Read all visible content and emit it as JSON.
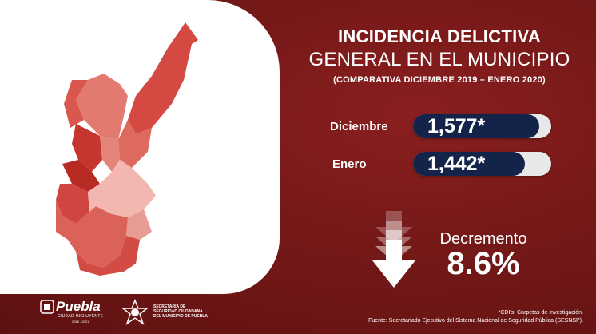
{
  "title": {
    "line1": "INCIDENCIA DELICTIVA",
    "line2": "GENERAL EN EL MUNICIPIO",
    "line3": "(COMPARATIVA DICIEMBRE 2019 – ENERO 2020)"
  },
  "rows": [
    {
      "label": "Diciembre",
      "value": "1,577*"
    },
    {
      "label": "Enero",
      "value": "1,442*"
    }
  ],
  "decrement": {
    "label": "Decremento",
    "value": "8.6%"
  },
  "logos": {
    "puebla_name": "Puebla",
    "puebla_tagline": "CIUDAD INCLUYENTE",
    "puebla_years": "2018 - 2021",
    "ssc_line1": "SECRETARÍA DE",
    "ssc_line2": "SEGURIDAD CIUDADANA",
    "ssc_line3": "DEL MUNICIPIO DE PUEBLA"
  },
  "footnotes": {
    "note1": "*CDI's: Carpetas de Investigación.",
    "note2": "Fuente: Secretariado Ejecutivo del Sistema Nacional de Seguridad Pública (SESNSP)."
  },
  "colors": {
    "background": "#741818",
    "pill_fill": "#14234a",
    "pill_track": "#e8e8ea",
    "map_dark": "#c73a33",
    "map_light": "#f2b9b4"
  }
}
